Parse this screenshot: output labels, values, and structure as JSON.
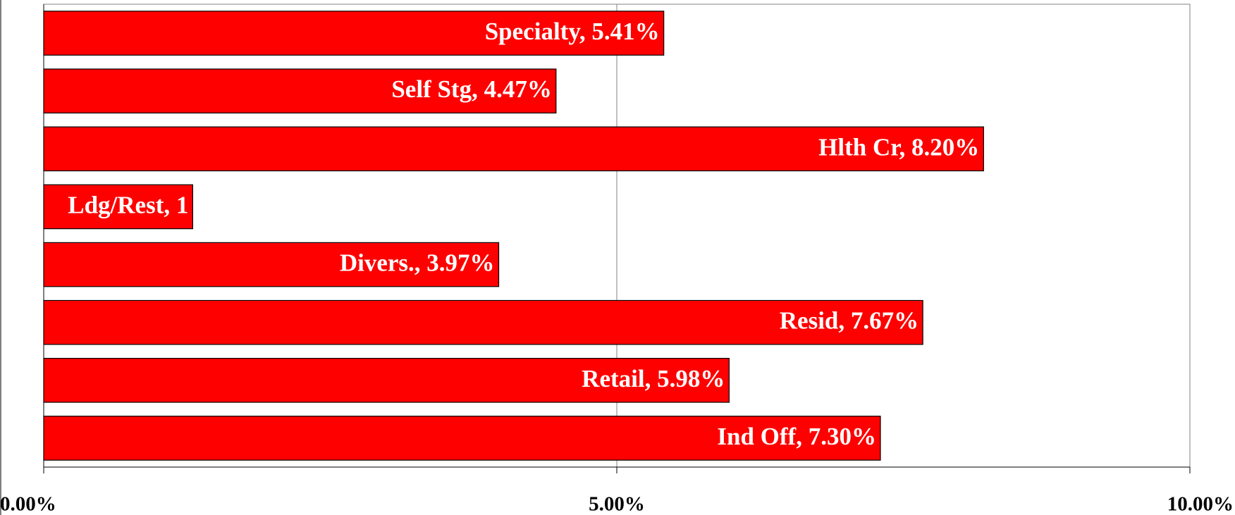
{
  "chart_data": {
    "type": "bar",
    "orientation": "horizontal",
    "color": "#ff0000",
    "values": [
      5.41,
      4.47,
      8.2,
      1.3,
      3.97,
      7.67,
      5.98,
      7.3
    ],
    "value_labels": [
      "Specialty, 5.41%",
      "Self Stg, 4.47%",
      "Hlth Cr, 8.20%",
      "Ldg/Rest, 1",
      "Divers., 3.97%",
      "Resid, 7.67%",
      "Retail, 5.98%",
      "Ind Off, 7.30%"
    ],
    "xlim": [
      0,
      10
    ],
    "xticks": [
      {
        "value": 0,
        "label": "0.00%"
      },
      {
        "value": 5,
        "label": "5.00%"
      },
      {
        "value": 10,
        "label": "10.00%"
      }
    ],
    "grid": true
  }
}
